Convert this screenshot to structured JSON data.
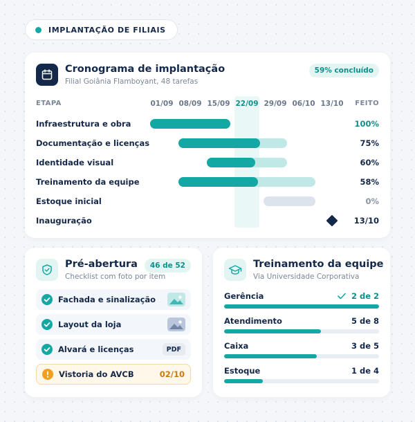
{
  "header": {
    "label": "IMPLANTAÇÃO DE FILIAIS"
  },
  "gantt": {
    "icon": "calendar-icon",
    "title": "Cronograma de implantação",
    "subtitle": "Filial Goiânia Flamboyant, 48 tarefas",
    "badge": "59% concluído",
    "col_stage": "ETAPA",
    "col_done": "FEITO",
    "dates": [
      "01/09",
      "08/09",
      "15/09",
      "22/09",
      "29/09",
      "06/10",
      "13/10"
    ],
    "today": "22/09",
    "rows": [
      {
        "label": "Infraestrutura e obra",
        "value": "100%",
        "progress": 1.0
      },
      {
        "label": "Documentação e licenças",
        "value": "75%",
        "progress": 0.75
      },
      {
        "label": "Identidade visual",
        "value": "60%",
        "progress": 0.6
      },
      {
        "label": "Treinamento da equipe",
        "value": "58%",
        "progress": 0.58
      },
      {
        "label": "Estoque inicial",
        "value": "0%",
        "progress": 0.0
      },
      {
        "label": "Inauguração",
        "value": "13/10",
        "milestone": true
      }
    ]
  },
  "preopening": {
    "icon": "shield-check-icon",
    "title": "Pré-abertura",
    "subtitle": "Checklist com foto por item",
    "badge": "46 de 52",
    "items": [
      {
        "label": "Fachada e sinalização",
        "status": "done",
        "attachment": "image-thumbnail-teal"
      },
      {
        "label": "Layout da loja",
        "status": "done",
        "attachment": "image-thumbnail-blue"
      },
      {
        "label": "Alvará e licenças",
        "status": "done",
        "attachment": "PDF"
      },
      {
        "label": "Vistoria do AVCB",
        "status": "warning",
        "count": "02/10"
      }
    ]
  },
  "training": {
    "icon": "graduation-cap-icon",
    "title": "Treinamento da equipe",
    "subtitle": "Via Universidade Corporativa",
    "items": [
      {
        "label": "Gerência",
        "value": "2 de 2",
        "progress": 1.0,
        "complete": true
      },
      {
        "label": "Atendimento",
        "value": "5 de 8",
        "progress": 0.625
      },
      {
        "label": "Caixa",
        "value": "3 de 5",
        "progress": 0.6
      },
      {
        "label": "Estoque",
        "value": "1 de 4",
        "progress": 0.25
      }
    ]
  },
  "colors": {
    "accent": "#13a8a3",
    "accent_light": "#bfe8e6",
    "navy": "#14284a",
    "warning": "#f0a020"
  }
}
